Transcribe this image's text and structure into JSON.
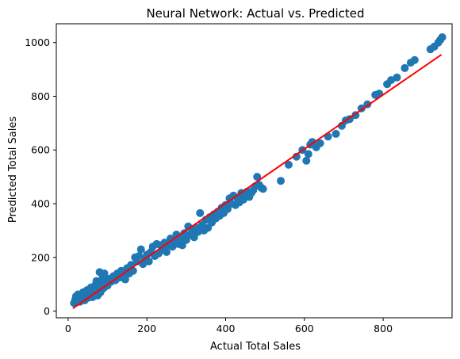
{
  "chart_data": {
    "type": "scatter",
    "title": "Neural Network: Actual vs. Predicted",
    "xlabel": "Actual Total Sales",
    "ylabel": "Predicted Total Sales",
    "xlim": [
      -30,
      975
    ],
    "ylim": [
      -25,
      1070
    ],
    "xticks": [
      0,
      200,
      400,
      600,
      800
    ],
    "yticks": [
      0,
      200,
      400,
      600,
      800,
      1000
    ],
    "grid": false,
    "colors": {
      "points": "#1f77b4",
      "fit_line": "#ff0000"
    },
    "series": [
      {
        "type": "scatter",
        "points": [
          [
            15,
            30
          ],
          [
            18,
            42
          ],
          [
            20,
            55
          ],
          [
            22,
            38
          ],
          [
            25,
            62
          ],
          [
            28,
            45
          ],
          [
            30,
            35
          ],
          [
            32,
            58
          ],
          [
            35,
            48
          ],
          [
            38,
            70
          ],
          [
            40,
            55
          ],
          [
            42,
            40
          ],
          [
            45,
            65
          ],
          [
            48,
            78
          ],
          [
            50,
            60
          ],
          [
            52,
            50
          ],
          [
            55,
            72
          ],
          [
            58,
            88
          ],
          [
            60,
            65
          ],
          [
            62,
            52
          ],
          [
            65,
            80
          ],
          [
            68,
            95
          ],
          [
            70,
            75
          ],
          [
            72,
            112
          ],
          [
            75,
            58
          ],
          [
            78,
            92
          ],
          [
            80,
            145
          ],
          [
            82,
            70
          ],
          [
            85,
            100
          ],
          [
            88,
            125
          ],
          [
            90,
            85
          ],
          [
            92,
            140
          ],
          [
            95,
            105
          ],
          [
            98,
            118
          ],
          [
            100,
            95
          ],
          [
            105,
            120
          ],
          [
            110,
            110
          ],
          [
            115,
            130
          ],
          [
            120,
            115
          ],
          [
            125,
            140
          ],
          [
            130,
            125
          ],
          [
            135,
            150
          ],
          [
            140,
            132
          ],
          [
            145,
            118
          ],
          [
            150,
            160
          ],
          [
            155,
            140
          ],
          [
            160,
            172
          ],
          [
            165,
            150
          ],
          [
            170,
            200
          ],
          [
            175,
            185
          ],
          [
            180,
            205
          ],
          [
            185,
            230
          ],
          [
            190,
            175
          ],
          [
            195,
            195
          ],
          [
            200,
            210
          ],
          [
            205,
            185
          ],
          [
            210,
            220
          ],
          [
            215,
            240
          ],
          [
            220,
            205
          ],
          [
            225,
            250
          ],
          [
            230,
            215
          ],
          [
            235,
            245
          ],
          [
            240,
            230
          ],
          [
            245,
            255
          ],
          [
            250,
            220
          ],
          [
            255,
            245
          ],
          [
            260,
            270
          ],
          [
            265,
            240
          ],
          [
            270,
            258
          ],
          [
            275,
            285
          ],
          [
            280,
            250
          ],
          [
            285,
            272
          ],
          [
            290,
            245
          ],
          [
            295,
            290
          ],
          [
            300,
            265
          ],
          [
            305,
            315
          ],
          [
            310,
            285
          ],
          [
            315,
            300
          ],
          [
            320,
            275
          ],
          [
            325,
            310
          ],
          [
            330,
            295
          ],
          [
            335,
            365
          ],
          [
            340,
            320
          ],
          [
            345,
            300
          ],
          [
            350,
            340
          ],
          [
            355,
            310
          ],
          [
            360,
            350
          ],
          [
            365,
            330
          ],
          [
            370,
            360
          ],
          [
            375,
            345
          ],
          [
            380,
            370
          ],
          [
            385,
            355
          ],
          [
            390,
            385
          ],
          [
            395,
            365
          ],
          [
            400,
            395
          ],
          [
            405,
            380
          ],
          [
            410,
            420
          ],
          [
            415,
            400
          ],
          [
            420,
            430
          ],
          [
            425,
            395
          ],
          [
            430,
            420
          ],
          [
            435,
            405
          ],
          [
            440,
            440
          ],
          [
            445,
            415
          ],
          [
            450,
            430
          ],
          [
            455,
            445
          ],
          [
            460,
            425
          ],
          [
            465,
            440
          ],
          [
            470,
            450
          ],
          [
            475,
            465
          ],
          [
            480,
            500
          ],
          [
            485,
            470
          ],
          [
            490,
            460
          ],
          [
            495,
            455
          ],
          [
            540,
            485
          ],
          [
            560,
            545
          ],
          [
            580,
            575
          ],
          [
            595,
            600
          ],
          [
            605,
            560
          ],
          [
            610,
            585
          ],
          [
            615,
            620
          ],
          [
            620,
            630
          ],
          [
            630,
            610
          ],
          [
            640,
            625
          ],
          [
            660,
            650
          ],
          [
            680,
            660
          ],
          [
            695,
            690
          ],
          [
            705,
            710
          ],
          [
            715,
            715
          ],
          [
            730,
            730
          ],
          [
            745,
            755
          ],
          [
            760,
            770
          ],
          [
            780,
            805
          ],
          [
            790,
            810
          ],
          [
            810,
            845
          ],
          [
            820,
            860
          ],
          [
            835,
            870
          ],
          [
            855,
            905
          ],
          [
            870,
            925
          ],
          [
            880,
            935
          ],
          [
            920,
            975
          ],
          [
            930,
            985
          ],
          [
            940,
            1000
          ],
          [
            945,
            1010
          ],
          [
            950,
            1020
          ]
        ]
      },
      {
        "type": "line",
        "x": [
          12,
          948
        ],
        "y": [
          10,
          955
        ]
      }
    ]
  }
}
